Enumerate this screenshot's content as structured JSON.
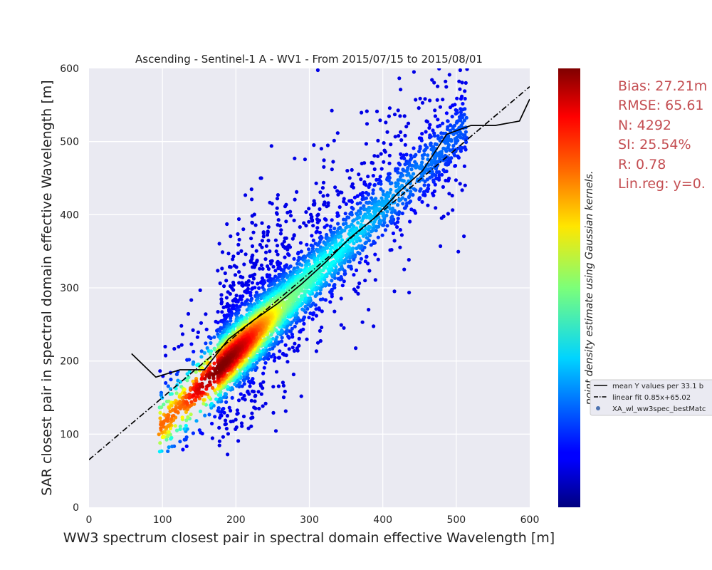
{
  "chart_data": {
    "type": "scatter",
    "title": "Ascending - Sentinel-1 A - WV1 - From 2015/07/15 to 2015/08/01",
    "xlabel": "WW3 spectrum closest pair in spectral domain effective Wavelength [m]",
    "ylabel": "SAR closest pair in spectral domain effective Wavelength [m]",
    "xlim": [
      0,
      600
    ],
    "ylim": [
      0,
      600
    ],
    "xticks": [
      "0",
      "100",
      "200",
      "300",
      "400",
      "500",
      "600"
    ],
    "yticks": [
      "0",
      "100",
      "200",
      "300",
      "400",
      "500",
      "600"
    ],
    "grid": true,
    "colormap": "jet",
    "colorbar_label": "point density estimate using Gaussian kernels.",
    "legend_position": "right",
    "series": [
      {
        "name": "mean Y values per 33.1 b",
        "kind": "line",
        "color": "#000000",
        "x": [
          58,
          91,
          124,
          157,
          190,
          223,
          256,
          289,
          322,
          355,
          388,
          421,
          454,
          487,
          520,
          553,
          586,
          600
        ],
        "y": [
          210,
          178,
          188,
          188,
          230,
          255,
          278,
          305,
          335,
          368,
          395,
          430,
          460,
          510,
          522,
          522,
          528,
          558
        ]
      },
      {
        "name": "linear fit 0.85x+65.02",
        "kind": "line",
        "style": "dashdot",
        "color": "#000000",
        "x": [
          0,
          600
        ],
        "y": [
          65.02,
          575.02
        ]
      },
      {
        "name": "XA_wl_ww3spec_bestMatc",
        "kind": "scatter",
        "color": "#4c72b0"
      }
    ],
    "stats": [
      "Bias: 27.21m",
      "RMSE: 65.61",
      "N: 4292",
      "SI: 25.54%",
      "R: 0.78",
      "Lin.reg: y=0."
    ]
  }
}
